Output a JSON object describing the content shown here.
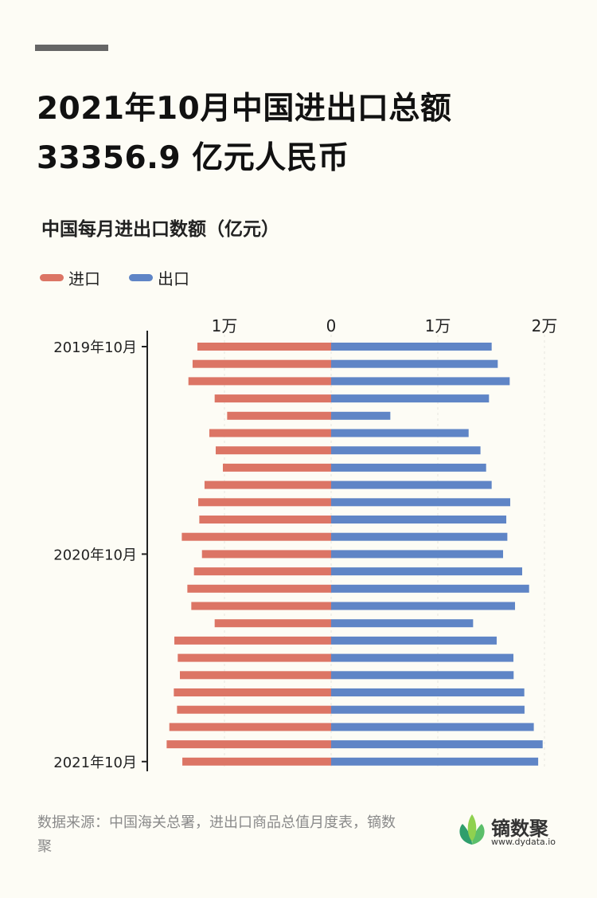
{
  "title_line1": "2021年10月中国进出口总额",
  "title_line2": "33356.9 亿元人民币",
  "footer": "数据来源：中国海关总署，进出口商品总值月度表，镝数聚",
  "logo": {
    "name": "镝数聚",
    "url": "www.dydata.io"
  },
  "colors": {
    "import": "#dc7565",
    "export": "#5f85c6"
  },
  "chart_data": {
    "type": "bar",
    "orientation": "horizontal-butterfly",
    "title": "中国每月进出口数额（亿元）",
    "legend": [
      "进口",
      "出口"
    ],
    "legend_placement": "top-left",
    "x_ticks": [
      {
        "value": -10000,
        "label": "1万"
      },
      {
        "value": 0,
        "label": "0"
      },
      {
        "value": 10000,
        "label": "1万"
      },
      {
        "value": 20000,
        "label": "2万"
      }
    ],
    "xlim": [
      -17500,
      20500
    ],
    "y_tick_labels": [
      {
        "index": 0,
        "label": "2019年10月"
      },
      {
        "index": 12,
        "label": "2020年10月"
      },
      {
        "index": 24,
        "label": "2021年10月"
      }
    ],
    "categories": [
      "2019-10",
      "2019-11",
      "2019-12",
      "2020-01",
      "2020-02",
      "2020-03",
      "2020-04",
      "2020-05",
      "2020-06",
      "2020-07",
      "2020-08",
      "2020-09",
      "2020-10",
      "2020-11",
      "2020-12",
      "2021-01",
      "2021-02",
      "2021-03",
      "2021-04",
      "2021-05",
      "2021-06",
      "2021-07",
      "2021-08",
      "2021-09",
      "2021-10"
    ],
    "series": [
      {
        "name": "进口",
        "values": [
          12540,
          12990,
          13380,
          10920,
          9750,
          11420,
          10820,
          10150,
          11870,
          12460,
          12360,
          14000,
          12110,
          12860,
          13480,
          13110,
          10920,
          14700,
          14380,
          14180,
          14750,
          14450,
          15170,
          15420,
          13950
        ]
      },
      {
        "name": "出口",
        "values": [
          15050,
          15620,
          16740,
          14800,
          5550,
          12890,
          14000,
          14530,
          15050,
          16790,
          16420,
          16520,
          16120,
          17910,
          18560,
          17240,
          13310,
          15520,
          17090,
          17110,
          18110,
          18130,
          19000,
          19830,
          19410
        ]
      }
    ]
  }
}
